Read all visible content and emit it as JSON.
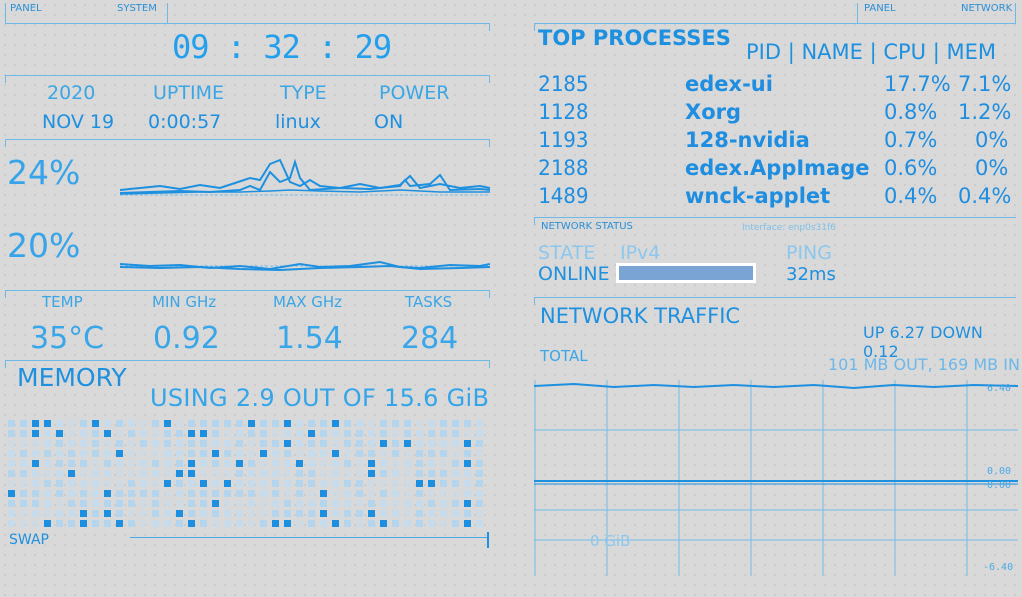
{
  "left_panel": {
    "tab_panel": "PANEL",
    "tab_system": "SYSTEM",
    "clock": "09 : 32 : 29",
    "info_headers": [
      "2020",
      "UPTIME",
      "TYPE",
      "POWER"
    ],
    "info_values": [
      "NOV 19",
      "0:00:57",
      "linux",
      "ON"
    ],
    "cpu_usage_1": "24%",
    "cpu_usage_2": "20%",
    "stats_headers": [
      "TEMP",
      "MIN GHz",
      "MAX GHz",
      "TASKS"
    ],
    "stats_values": [
      "35°C",
      "0.92",
      "1.54",
      "284"
    ],
    "memory_title": "MEMORY",
    "memory_usage": "USING 2.9 OUT OF 15.6 GiB",
    "swap_label": "SWAP"
  },
  "right_panel": {
    "tab_panel": "PANEL",
    "tab_network": "NETWORK",
    "top_processes_title": "TOP PROCESSES",
    "process_columns": "PID | NAME | CPU | MEM",
    "processes": [
      {
        "pid": "2185",
        "name": "edex-ui",
        "cpu": "17.7%",
        "mem": "7.1%"
      },
      {
        "pid": "1128",
        "name": "Xorg",
        "cpu": "0.8%",
        "mem": "1.2%"
      },
      {
        "pid": "1193",
        "name": "128-nvidia",
        "cpu": "0.7%",
        "mem": "0%"
      },
      {
        "pid": "2188",
        "name": "edex.AppImage",
        "cpu": "0.6%",
        "mem": "0%"
      },
      {
        "pid": "1489",
        "name": "wnck-applet",
        "cpu": "0.4%",
        "mem": "0.4%"
      }
    ],
    "network_status_title": "NETWORK STATUS",
    "interface": "Interface: enp0s31f6",
    "state_label": "STATE",
    "ipv4_label": "IPv4",
    "ping_label": "PING",
    "state_value": "ONLINE",
    "ping_value": "32ms",
    "network_traffic_title": "NETWORK TRAFFIC",
    "traffic_rates": "UP 6.27 DOWN 0.12",
    "total_label": "TOTAL",
    "total_value": "101 MB OUT, 169 MB IN",
    "scale_top": "6.40",
    "scale_mid_a": "0.00",
    "scale_mid_b": "0.00",
    "scale_bottom": "-6.40",
    "gib_label": "0 GiB"
  },
  "colors": {
    "accent": "#2fa3e8",
    "background": "#d9d9d9",
    "ip_bar": "#7aa4d4"
  }
}
